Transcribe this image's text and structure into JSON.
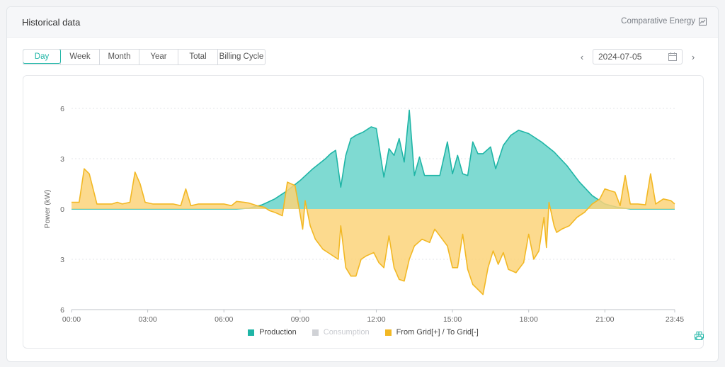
{
  "header": {
    "title": "Historical data",
    "link_label": "Comparative Energy"
  },
  "tabs": [
    {
      "label": "Day",
      "active": true
    },
    {
      "label": "Week",
      "active": false
    },
    {
      "label": "Month",
      "active": false
    },
    {
      "label": "Year",
      "active": false
    },
    {
      "label": "Total",
      "active": false
    },
    {
      "label": "Billing Cycle",
      "active": false
    }
  ],
  "date_picker": {
    "value": "2024-07-05"
  },
  "legend": {
    "items": [
      {
        "label": "Production",
        "color": "#1fb5a6",
        "enabled": true
      },
      {
        "label": "Consumption",
        "color": "#d0d2d6",
        "enabled": false
      },
      {
        "label": "From Grid[+] / To Grid[-]",
        "color": "#f2b824",
        "enabled": true
      }
    ]
  },
  "icons": {
    "download": "download-icon",
    "print": "print-icon",
    "calendar": "calendar-icon",
    "comparison": "chart-compare-icon"
  },
  "chart_data": {
    "type": "area",
    "ylabel": "Power   (kW)",
    "y_ticks": [
      "6",
      "3",
      "0",
      "3",
      "6"
    ],
    "ylim": [
      -6,
      6
    ],
    "x_ticks": [
      "00:00",
      "03:00",
      "06:00",
      "09:00",
      "12:00",
      "15:00",
      "18:00",
      "21:00",
      "23:45"
    ],
    "xlim_hours": [
      0,
      23.75
    ],
    "grid": true,
    "series": [
      {
        "name": "Production",
        "color": "#1fb5a6",
        "fill": "#7fdad2",
        "points": [
          [
            0,
            0
          ],
          [
            6.5,
            0
          ],
          [
            7,
            0.05
          ],
          [
            7.5,
            0.25
          ],
          [
            8,
            0.6
          ],
          [
            8.5,
            1.1
          ],
          [
            9,
            1.7
          ],
          [
            9.5,
            2.4
          ],
          [
            10,
            3.0
          ],
          [
            10.2,
            3.3
          ],
          [
            10.4,
            3.5
          ],
          [
            10.6,
            1.3
          ],
          [
            10.8,
            3.2
          ],
          [
            11,
            4.2
          ],
          [
            11.2,
            4.4
          ],
          [
            11.5,
            4.6
          ],
          [
            11.8,
            4.9
          ],
          [
            12,
            4.8
          ],
          [
            12.3,
            1.9
          ],
          [
            12.5,
            3.6
          ],
          [
            12.7,
            3.2
          ],
          [
            12.9,
            4.2
          ],
          [
            13.1,
            2.8
          ],
          [
            13.3,
            5.9
          ],
          [
            13.5,
            2.0
          ],
          [
            13.7,
            3.1
          ],
          [
            13.9,
            2.0
          ],
          [
            14.2,
            2.0
          ],
          [
            14.5,
            2.0
          ],
          [
            14.8,
            4.0
          ],
          [
            15.0,
            2.1
          ],
          [
            15.2,
            3.2
          ],
          [
            15.4,
            2.1
          ],
          [
            15.6,
            2.0
          ],
          [
            15.8,
            4.0
          ],
          [
            16.0,
            3.3
          ],
          [
            16.2,
            3.3
          ],
          [
            16.5,
            3.7
          ],
          [
            16.7,
            2.4
          ],
          [
            17.0,
            3.8
          ],
          [
            17.3,
            4.4
          ],
          [
            17.6,
            4.7
          ],
          [
            18.0,
            4.5
          ],
          [
            18.5,
            4.0
          ],
          [
            19.0,
            3.4
          ],
          [
            19.5,
            2.6
          ],
          [
            20.0,
            1.6
          ],
          [
            20.5,
            0.8
          ],
          [
            21.0,
            0.3
          ],
          [
            21.5,
            0.1
          ],
          [
            22.0,
            0
          ],
          [
            23.75,
            0
          ]
        ]
      },
      {
        "name": "From Grid[+] / To Grid[-]",
        "color": "#f2b824",
        "fill": "#fbd47a",
        "points": [
          [
            0,
            0.4
          ],
          [
            0.3,
            0.4
          ],
          [
            0.5,
            2.4
          ],
          [
            0.7,
            2.1
          ],
          [
            0.9,
            0.9
          ],
          [
            1.0,
            0.3
          ],
          [
            1.3,
            0.3
          ],
          [
            1.6,
            0.3
          ],
          [
            1.8,
            0.4
          ],
          [
            2.0,
            0.3
          ],
          [
            2.3,
            0.4
          ],
          [
            2.5,
            2.2
          ],
          [
            2.7,
            1.5
          ],
          [
            2.9,
            0.4
          ],
          [
            3.2,
            0.3
          ],
          [
            3.6,
            0.3
          ],
          [
            4.0,
            0.3
          ],
          [
            4.3,
            0.2
          ],
          [
            4.5,
            1.2
          ],
          [
            4.7,
            0.2
          ],
          [
            5.0,
            0.3
          ],
          [
            5.5,
            0.3
          ],
          [
            6.0,
            0.3
          ],
          [
            6.3,
            0.2
          ],
          [
            6.5,
            0.45
          ],
          [
            6.8,
            0.4
          ],
          [
            7.0,
            0.35
          ],
          [
            7.3,
            0.2
          ],
          [
            7.6,
            0.1
          ],
          [
            7.8,
            -0.1
          ],
          [
            8.0,
            -0.2
          ],
          [
            8.3,
            -0.4
          ],
          [
            8.5,
            1.6
          ],
          [
            8.8,
            1.4
          ],
          [
            9.0,
            -0.3
          ],
          [
            9.1,
            -1.2
          ],
          [
            9.2,
            0.5
          ],
          [
            9.4,
            -1.0
          ],
          [
            9.6,
            -1.8
          ],
          [
            9.9,
            -2.4
          ],
          [
            10.1,
            -2.6
          ],
          [
            10.5,
            -3.0
          ],
          [
            10.6,
            -1.0
          ],
          [
            10.8,
            -3.5
          ],
          [
            11.0,
            -4.0
          ],
          [
            11.2,
            -4.0
          ],
          [
            11.4,
            -3.0
          ],
          [
            11.6,
            -2.8
          ],
          [
            11.9,
            -2.6
          ],
          [
            12.1,
            -3.2
          ],
          [
            12.3,
            -3.5
          ],
          [
            12.5,
            -1.6
          ],
          [
            12.7,
            -3.5
          ],
          [
            12.9,
            -4.2
          ],
          [
            13.1,
            -4.3
          ],
          [
            13.3,
            -3.0
          ],
          [
            13.5,
            -2.2
          ],
          [
            13.8,
            -1.8
          ],
          [
            14.1,
            -2.0
          ],
          [
            14.3,
            -1.2
          ],
          [
            14.5,
            -1.6
          ],
          [
            14.8,
            -2.2
          ],
          [
            15.0,
            -3.5
          ],
          [
            15.2,
            -3.5
          ],
          [
            15.4,
            -1.5
          ],
          [
            15.6,
            -3.6
          ],
          [
            15.8,
            -4.5
          ],
          [
            16.0,
            -4.8
          ],
          [
            16.2,
            -5.1
          ],
          [
            16.4,
            -3.5
          ],
          [
            16.6,
            -2.5
          ],
          [
            16.8,
            -3.3
          ],
          [
            17.0,
            -2.6
          ],
          [
            17.2,
            -3.6
          ],
          [
            17.5,
            -3.8
          ],
          [
            17.8,
            -3.2
          ],
          [
            18.0,
            -1.5
          ],
          [
            18.2,
            -3.0
          ],
          [
            18.4,
            -2.5
          ],
          [
            18.6,
            -0.5
          ],
          [
            18.7,
            -2.3
          ],
          [
            18.8,
            0.4
          ],
          [
            19.0,
            -1.0
          ],
          [
            19.1,
            -1.4
          ],
          [
            19.3,
            -1.2
          ],
          [
            19.6,
            -1.0
          ],
          [
            19.9,
            -0.5
          ],
          [
            20.2,
            -0.2
          ],
          [
            20.5,
            0.3
          ],
          [
            20.8,
            0.6
          ],
          [
            21.0,
            1.2
          ],
          [
            21.2,
            1.1
          ],
          [
            21.4,
            1.0
          ],
          [
            21.6,
            0.2
          ],
          [
            21.8,
            2.0
          ],
          [
            22.0,
            0.3
          ],
          [
            22.3,
            0.3
          ],
          [
            22.6,
            0.25
          ],
          [
            22.8,
            2.1
          ],
          [
            23.0,
            0.3
          ],
          [
            23.3,
            0.6
          ],
          [
            23.6,
            0.5
          ],
          [
            23.75,
            0.3
          ]
        ]
      }
    ]
  }
}
